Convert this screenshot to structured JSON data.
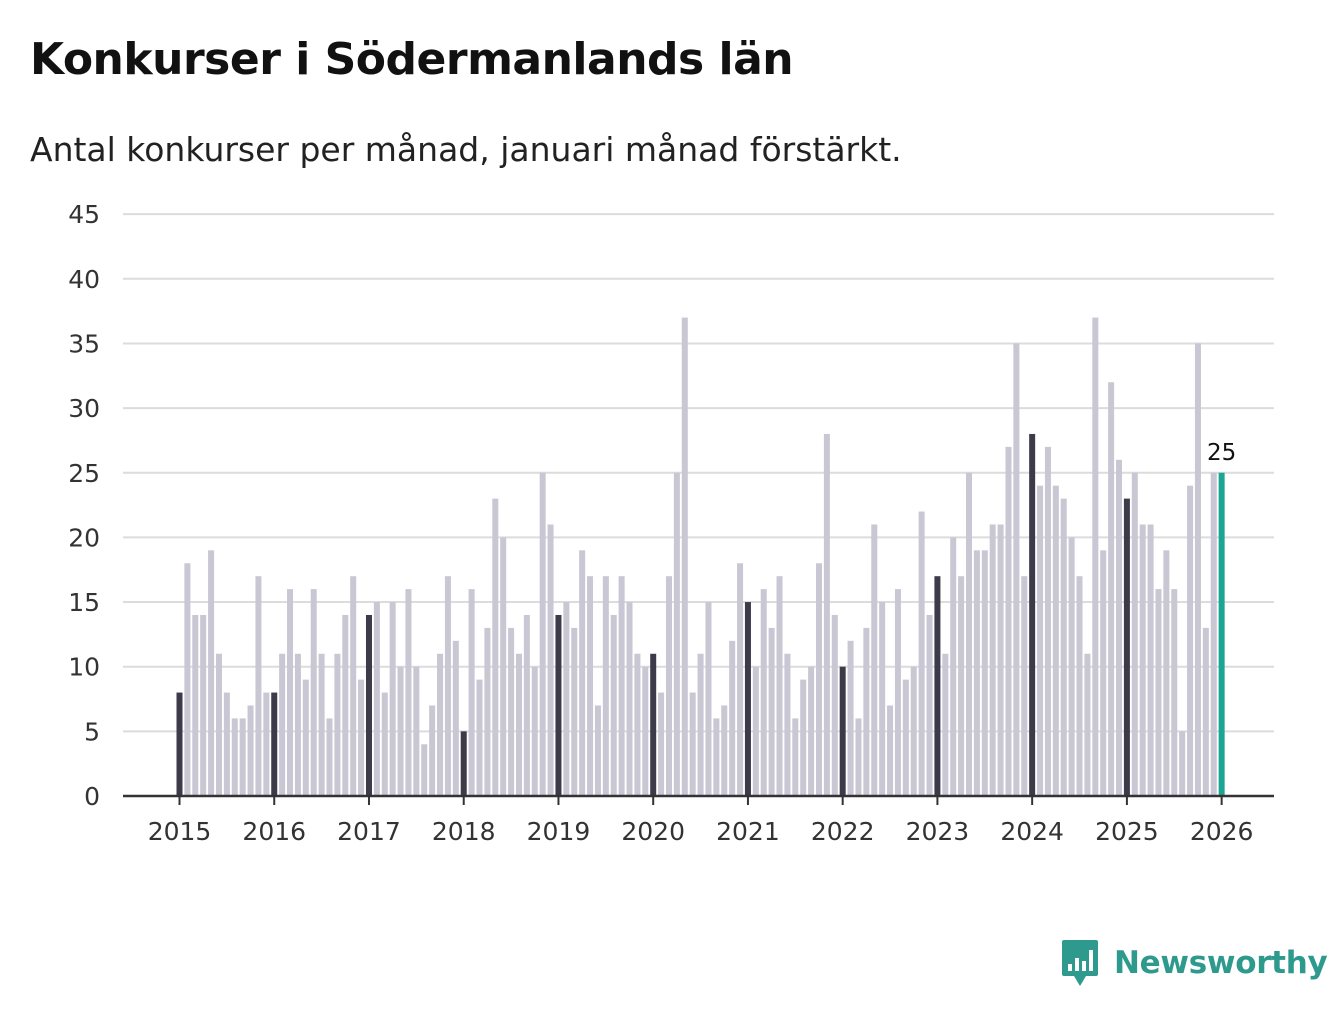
{
  "title": "Konkurser i Södermanlands län",
  "subtitle": "Antal konkurser per månad, januari månad förstärkt.",
  "brand": {
    "name": "Newsworthy",
    "icon": "newsworthy-logo-icon"
  },
  "colors": {
    "bar": "#c8c7d3",
    "january": "#3d3a4a",
    "latest": "#1aa595",
    "grid": "#dcdcdc",
    "axis": "#333333",
    "brand": "#2e9a8e"
  },
  "chart_data": {
    "type": "bar",
    "title": "Konkurser i Södermanlands län",
    "xlabel": "",
    "ylabel": "",
    "ylim": [
      0,
      45
    ],
    "yticks": [
      0,
      5,
      10,
      15,
      20,
      25,
      30,
      35,
      40,
      45
    ],
    "xticks": [
      "2015",
      "2016",
      "2017",
      "2018",
      "2019",
      "2020",
      "2021",
      "2022",
      "2023",
      "2024",
      "2025",
      "2026"
    ],
    "start": "2015-01",
    "highlight": "january",
    "annotation": {
      "index": 132,
      "text": "25"
    },
    "values": [
      8,
      18,
      14,
      14,
      19,
      11,
      8,
      6,
      6,
      7,
      17,
      8,
      8,
      11,
      16,
      11,
      9,
      16,
      11,
      6,
      11,
      14,
      17,
      9,
      14,
      15,
      8,
      15,
      10,
      16,
      10,
      4,
      7,
      11,
      17,
      12,
      5,
      16,
      9,
      13,
      23,
      20,
      13,
      11,
      14,
      10,
      25,
      21,
      14,
      15,
      13,
      19,
      17,
      7,
      17,
      14,
      17,
      15,
      11,
      10,
      11,
      8,
      17,
      25,
      37,
      8,
      11,
      15,
      6,
      7,
      12,
      18,
      15,
      10,
      16,
      13,
      17,
      11,
      6,
      9,
      10,
      18,
      28,
      14,
      10,
      12,
      6,
      13,
      21,
      15,
      7,
      16,
      9,
      10,
      22,
      14,
      17,
      11,
      20,
      17,
      25,
      19,
      19,
      21,
      21,
      27,
      35,
      17,
      28,
      24,
      27,
      24,
      23,
      20,
      17,
      11,
      37,
      19,
      32,
      26,
      23,
      25,
      21,
      21,
      16,
      19,
      16,
      5,
      24,
      35,
      13,
      25,
      25
    ]
  }
}
